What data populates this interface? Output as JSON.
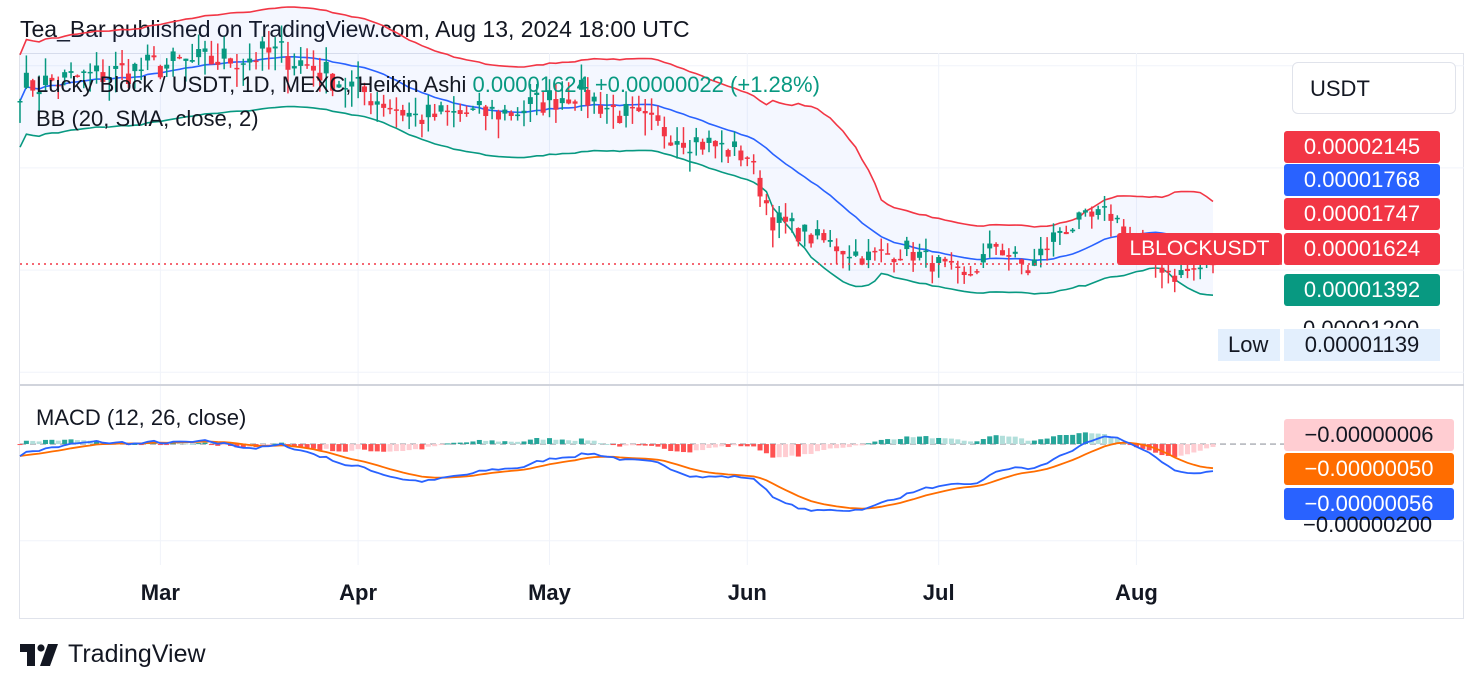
{
  "header": {
    "published_text": "Tea_Bar published on TradingView.com, Aug 13, 2024 18:00 UTC"
  },
  "legend": {
    "symbol_line": "Lucky Block / USDT, 1D, MEXC, Heikin Ashi",
    "price_change": "0.00001624 +0.00000022 (+1.28%)",
    "bb_label": "BB (20, SMA, close, 2)",
    "macd_label": "MACD (12, 26, close)"
  },
  "currency_button": "USDT",
  "price_scale": {
    "bb_upper": "0.00002145",
    "bb_basis": "0.00001768",
    "high_price": "0.00001747",
    "last_price": "0.00001624",
    "symbol_tag": "LBLOCKUSDT",
    "bb_lower": "0.00001392",
    "grid_label": "0.00001200",
    "low_label": "Low",
    "low_value": "0.00001139"
  },
  "macd_scale": {
    "histogram": "−0.00000006",
    "signal": "−0.00000050",
    "macd": "−0.00000056",
    "grid_label": "−0.00000200"
  },
  "colors": {
    "up": "#089981",
    "down": "#f23645",
    "bb_upper": "#f23645",
    "bb_basis": "#2962ff",
    "bb_lower": "#089981",
    "macd_line": "#2962ff",
    "signal_line": "#ff6d00",
    "hist_up_strong": "#26a69a",
    "hist_up_weak": "#b2dfdb",
    "hist_down_strong": "#ff5252",
    "hist_down_weak": "#ffcdd2"
  },
  "footer": {
    "brand": "TradingView"
  },
  "chart_data": {
    "type": "candlestick",
    "title": "Lucky Block / USDT, 1D, MEXC, Heikin Ashi",
    "x_axis_months": [
      "Mar",
      "Apr",
      "May",
      "Jun",
      "Jul",
      "Aug"
    ],
    "x_range": [
      "2024-02-08",
      "2024-08-13"
    ],
    "price_ylim": [
      1.15e-05,
      2.45e-05
    ],
    "macd_ylim": [
      -2.5e-06,
      1.2e-06
    ],
    "last": {
      "date": "2024-08-13",
      "close": 1.624e-05,
      "change": 2.2e-07,
      "change_pct": 1.28
    },
    "bollinger": {
      "upper": 2.145e-05,
      "basis": 1.768e-05,
      "lower": 1.392e-05
    },
    "period_low": 1.139e-05,
    "key_points": [
      {
        "date": "2024-02-08",
        "price": 2.32e-05
      },
      {
        "date": "2024-03-01",
        "price": 2.4e-05
      },
      {
        "date": "2024-03-20",
        "price": 2.45e-05
      },
      {
        "date": "2024-04-10",
        "price": 2.2e-05
      },
      {
        "date": "2024-04-25",
        "price": 2.22e-05
      },
      {
        "date": "2024-05-05",
        "price": 2.3e-05
      },
      {
        "date": "2024-05-15",
        "price": 2.18e-05
      },
      {
        "date": "2024-05-25",
        "price": 2.1e-05
      },
      {
        "date": "2024-06-01",
        "price": 2.05e-05
      },
      {
        "date": "2024-06-05",
        "price": 1.8e-05
      },
      {
        "date": "2024-06-12",
        "price": 1.72e-05
      },
      {
        "date": "2024-06-20",
        "price": 1.65e-05
      },
      {
        "date": "2024-06-26",
        "price": 1.68e-05
      },
      {
        "date": "2024-07-01",
        "price": 1.62e-05
      },
      {
        "date": "2024-07-05",
        "price": 1.56e-05
      },
      {
        "date": "2024-07-10",
        "price": 1.7e-05
      },
      {
        "date": "2024-07-15",
        "price": 1.6e-05
      },
      {
        "date": "2024-07-20",
        "price": 1.76e-05
      },
      {
        "date": "2024-07-28",
        "price": 1.82e-05
      },
      {
        "date": "2024-08-03",
        "price": 1.65e-05
      },
      {
        "date": "2024-08-07",
        "price": 1.58e-05
      },
      {
        "date": "2024-08-13",
        "price": 1.624e-05
      }
    ],
    "macd_last": {
      "histogram": -6e-08,
      "signal": -5e-07,
      "macd": -5.6e-07
    }
  }
}
